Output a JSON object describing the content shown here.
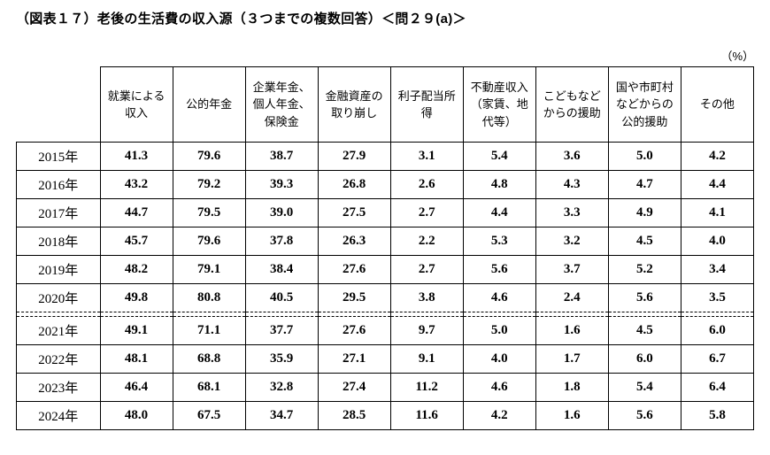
{
  "figure": {
    "title": "（図表１７）老後の生活費の収入源（３つまでの複数回答）＜問２９(a)＞",
    "unit_label": "（%）"
  },
  "chart_data": {
    "type": "table",
    "title": "老後の生活費の収入源（３つまでの複数回答）＜問２９(a)＞",
    "unit": "%",
    "columns": [
      "就業による収入",
      "公的年金",
      "企業年金、個人年金、保険金",
      "金融資産の取り崩し",
      "利子配当所得",
      "不動産収入（家賃、地代等）",
      "こどもなどからの援助",
      "国や市町村などからの公的援助",
      "その他"
    ],
    "rows": [
      {
        "year": "2015年",
        "values": [
          41.3,
          79.6,
          38.7,
          27.9,
          3.1,
          5.4,
          3.6,
          5.0,
          4.2
        ]
      },
      {
        "year": "2016年",
        "values": [
          43.2,
          79.2,
          39.3,
          26.8,
          2.6,
          4.8,
          4.3,
          4.7,
          4.4
        ]
      },
      {
        "year": "2017年",
        "values": [
          44.7,
          79.5,
          39.0,
          27.5,
          2.7,
          4.4,
          3.3,
          4.9,
          4.1
        ]
      },
      {
        "year": "2018年",
        "values": [
          45.7,
          79.6,
          37.8,
          26.3,
          2.2,
          5.3,
          3.2,
          4.5,
          4.0
        ]
      },
      {
        "year": "2019年",
        "values": [
          48.2,
          79.1,
          38.4,
          27.6,
          2.7,
          5.6,
          3.7,
          5.2,
          3.4
        ]
      },
      {
        "year": "2020年",
        "values": [
          49.8,
          80.8,
          40.5,
          29.5,
          3.8,
          4.6,
          2.4,
          5.6,
          3.5
        ]
      },
      {
        "year": "2021年",
        "values": [
          49.1,
          71.1,
          37.7,
          27.6,
          9.7,
          5.0,
          1.6,
          4.5,
          6.0
        ]
      },
      {
        "year": "2022年",
        "values": [
          48.1,
          68.8,
          35.9,
          27.1,
          9.1,
          4.0,
          1.7,
          6.0,
          6.7
        ]
      },
      {
        "year": "2023年",
        "values": [
          46.4,
          68.1,
          32.8,
          27.4,
          11.2,
          4.6,
          1.8,
          5.4,
          6.4
        ]
      },
      {
        "year": "2024年",
        "values": [
          48.0,
          67.5,
          34.7,
          28.5,
          11.6,
          4.2,
          1.6,
          5.6,
          5.8
        ]
      }
    ],
    "separator_after_row": "2020年",
    "value_format": "one-decimal"
  }
}
